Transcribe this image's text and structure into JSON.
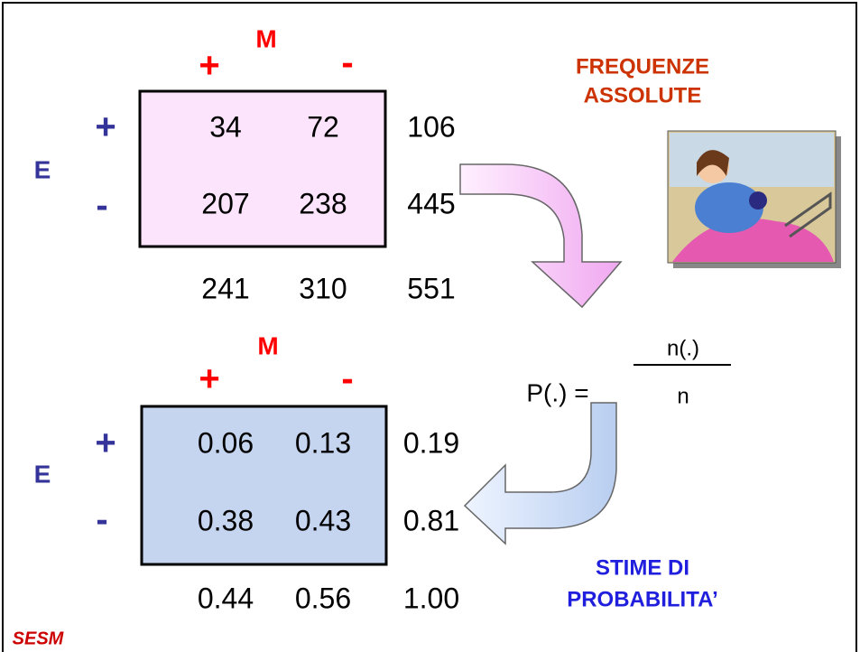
{
  "top_table": {
    "column_header": "M",
    "column_signs": [
      "+",
      "-"
    ],
    "row_header": "E",
    "row_signs": [
      "+",
      "-"
    ],
    "rows": [
      [
        "34",
        "72",
        "106"
      ],
      [
        "207",
        "238",
        "445"
      ]
    ],
    "totals": [
      "241",
      "310",
      "551"
    ]
  },
  "top_caption": [
    "FREQUENZE",
    "ASSOLUTE"
  ],
  "formula": {
    "left": "P(.) =",
    "numerator": "n(.)",
    "denominator": "n"
  },
  "bottom_table": {
    "column_header": "M",
    "column_signs": [
      "+",
      "-"
    ],
    "row_header": "E",
    "row_signs": [
      "+",
      "-"
    ],
    "rows": [
      [
        "0.06",
        "0.13",
        "0.19"
      ],
      [
        "0.38",
        "0.43",
        "0.81"
      ]
    ],
    "totals": [
      "0.44",
      "0.56",
      "1.00"
    ]
  },
  "bottom_caption": [
    "STIME DI",
    "PROBABILITA’"
  ],
  "logo": "SESM"
}
